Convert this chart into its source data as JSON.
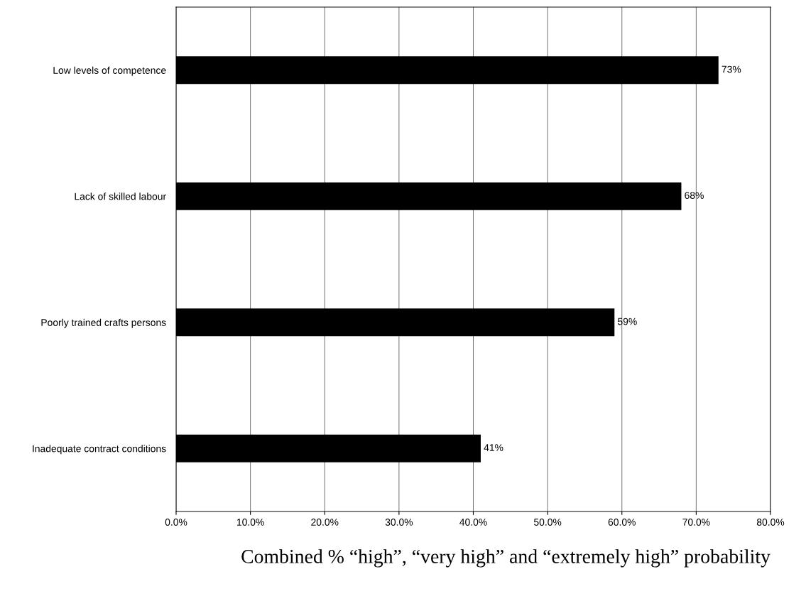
{
  "chart_data": {
    "type": "bar",
    "orientation": "horizontal",
    "categories": [
      "Low levels of competence",
      "Lack of skilled labour",
      "Poorly trained crafts persons",
      "Inadequate contract conditions"
    ],
    "values": [
      73,
      68,
      59,
      41
    ],
    "color": "#000000",
    "value_labels": [
      "73%",
      "68%",
      "59%",
      "41%"
    ],
    "xlabel": "Combined % “high”, “very high” and “extremely high” probability",
    "xlim": [
      0,
      80
    ],
    "xticks": [
      {
        "value": 0,
        "label": "0.0%"
      },
      {
        "value": 10,
        "label": "10.0%"
      },
      {
        "value": 20,
        "label": "20.0%"
      },
      {
        "value": 30,
        "label": "30.0%"
      },
      {
        "value": 40,
        "label": "40.0%"
      },
      {
        "value": 50,
        "label": "50.0%"
      },
      {
        "value": 60,
        "label": "60.0%"
      },
      {
        "value": 70,
        "label": "70.0%"
      },
      {
        "value": 80,
        "label": "80.0%"
      }
    ],
    "grid": "x",
    "legend": false
  }
}
